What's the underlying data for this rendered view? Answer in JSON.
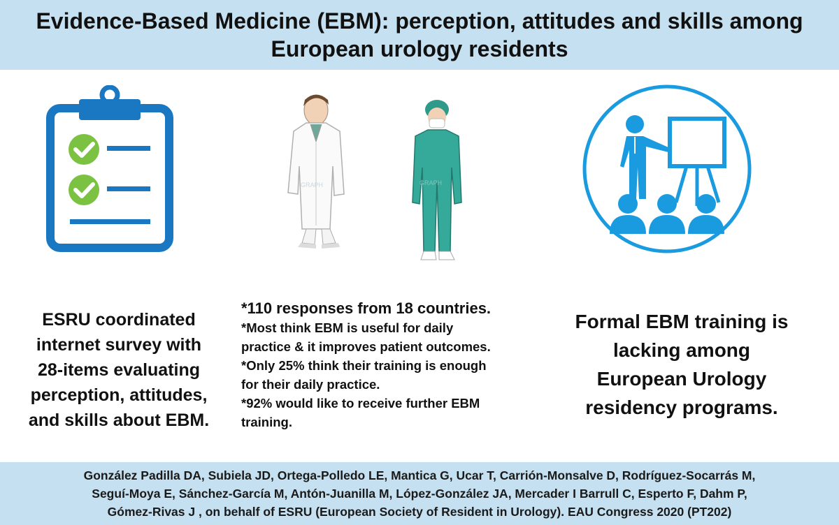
{
  "header": {
    "title_line1": "Evidence-Based Medicine (EBM): perception, attitudes and skills among",
    "title_line2": "European urology residents"
  },
  "left": {
    "icon": "clipboard-checklist-icon",
    "lines": [
      "ESRU coordinated",
      "internet survey with",
      "28-items evaluating",
      "perception, attitudes,",
      "and skills about EBM."
    ]
  },
  "middle": {
    "icons": [
      "doctor-figure-icon",
      "surgeon-figure-icon"
    ],
    "watermark_text": "GRAPH",
    "line1": "*110 responses from 18 countries.",
    "lines": [
      "*Most think EBM is useful for daily",
      "practice & it improves patient outcomes.",
      "*Only 25% think their training is enough",
      "for their daily practice.",
      "*92% would like to receive further EBM",
      "training."
    ]
  },
  "right": {
    "icon": "presentation-audience-icon",
    "lines": [
      "Formal EBM training is",
      "lacking among",
      "European Urology",
      "residency programs."
    ]
  },
  "footer": {
    "lines": [
      "González Padilla DA, Subiela JD, Ortega-Polledo LE, Mantica G, Ucar T, Carrión-Monsalve D, Rodríguez-Socarrás M,",
      "Seguí-Moya E, Sánchez-García M, Antón-Juanilla M, López-González JA, Mercader I Barrull C, Esperto F, Dahm P,",
      "Gómez-Rivas J , on behalf of ESRU (European Society of Resident in Urology). EAU Congress 2020  (PT202)"
    ]
  },
  "colors": {
    "band": "#c5e0f0",
    "icon_blue": "#1a78c2",
    "check_green": "#7cc242",
    "scrubs": "#35a99a"
  }
}
